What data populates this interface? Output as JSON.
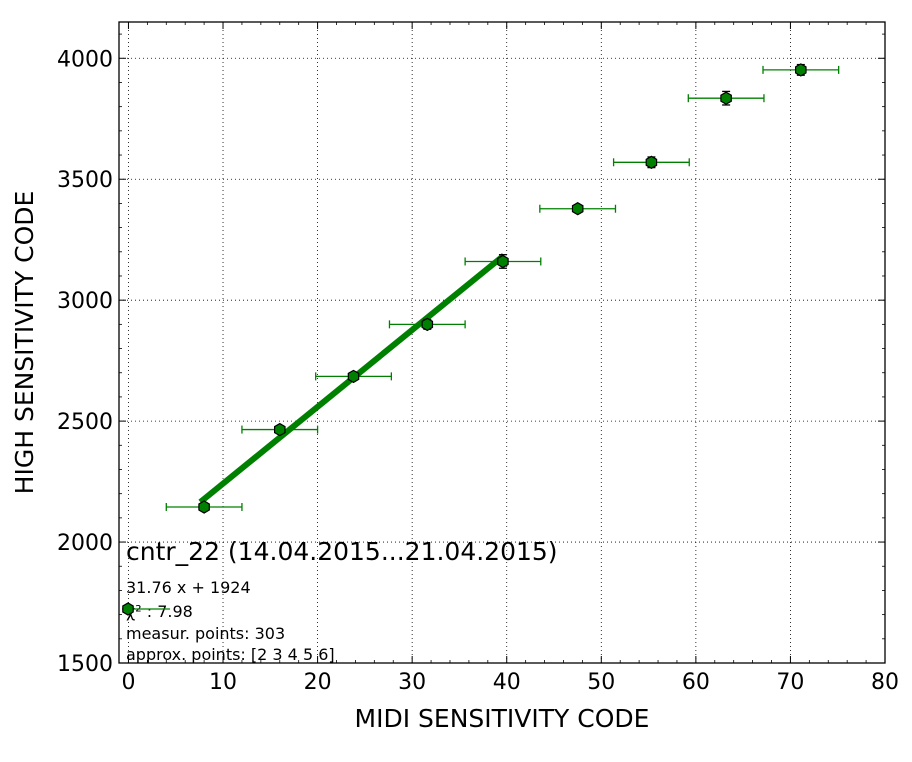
{
  "chart_data": {
    "type": "scatter",
    "xlabel": "MIDI SENSITIVITY CODE",
    "ylabel": "HIGH SENSITIVITY CODE",
    "xlim": [
      -1,
      80
    ],
    "ylim": [
      1500,
      4150
    ],
    "x_ticks": [
      0,
      10,
      20,
      30,
      40,
      50,
      60,
      70,
      80
    ],
    "y_ticks": [
      1500,
      2000,
      2500,
      3000,
      3500,
      4000
    ],
    "grid": true,
    "grid_style": "dotted",
    "series": [
      {
        "color": "#008000",
        "marker": "hexagon",
        "points": [
          {
            "x": 8,
            "y": 2145,
            "xerr": 4,
            "yerr": 12
          },
          {
            "x": 16,
            "y": 2465,
            "xerr": 4,
            "yerr": 12
          },
          {
            "x": 23.8,
            "y": 2685,
            "xerr": 4,
            "yerr": 12
          },
          {
            "x": 31.6,
            "y": 2900,
            "xerr": 4,
            "yerr": 20
          },
          {
            "x": 39.6,
            "y": 3160,
            "xerr": 4,
            "yerr": 28
          },
          {
            "x": 47.5,
            "y": 3378,
            "xerr": 4,
            "yerr": 14
          },
          {
            "x": 55.3,
            "y": 3570,
            "xerr": 4,
            "yerr": 22
          },
          {
            "x": 63.2,
            "y": 3835,
            "xerr": 4,
            "yerr": 28
          },
          {
            "x": 71.1,
            "y": 3952,
            "xerr": 4,
            "yerr": 22
          }
        ]
      }
    ],
    "fit_line": {
      "color": "#008000",
      "slope": 31.76,
      "intercept": 1924,
      "x_range": [
        7.6,
        39.7
      ]
    },
    "annotations": {
      "title": "cntr_22 (14.04.2015...21.04.2015)",
      "formula": "31.76 x + 1924",
      "chi2": "χ² : 7.98",
      "measured": "measur. points: 303",
      "approx": "approx. points: [2 3 4 5 6]"
    }
  }
}
